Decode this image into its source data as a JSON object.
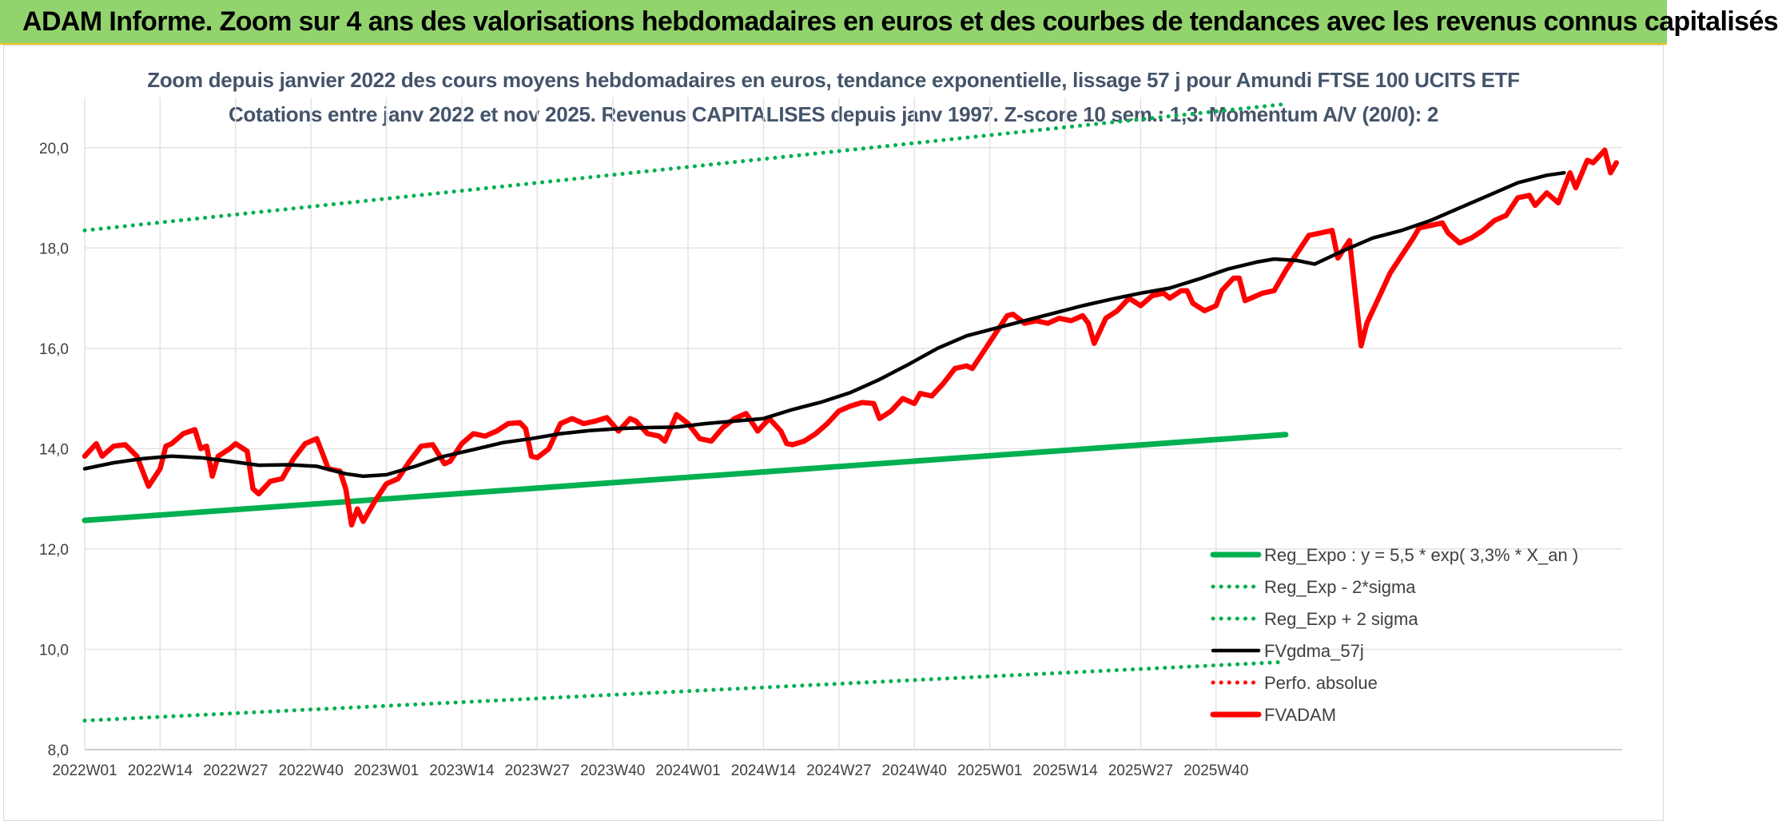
{
  "banner": {
    "title": "ADAM Informe. Zoom sur 4 ans des valorisations hebdomadaires en euros et des courbes de tendances avec les revenus connus capitalisés"
  },
  "chart_data": {
    "type": "line",
    "title": "Zoom depuis janvier 2022 des cours moyens hebdomadaires en euros, tendance exponentielle, lissage 57 j pour Amundi FTSE 100 UCITS ETF",
    "subtitle": "Cotations entre janv 2022 et nov 2025. Revenus CAPITALISES depuis janv 1997. Z-score 10 sem.: 1,3. Momentum A/V (20/0): 2",
    "ylim": [
      8,
      21
    ],
    "yticks": [
      "8,0",
      "10,0",
      "12,0",
      "14,0",
      "16,0",
      "18,0",
      "20,0"
    ],
    "xticks": [
      "2022W01",
      "2022W14",
      "2022W27",
      "2022W40",
      "2023W01",
      "2023W14",
      "2023W27",
      "2023W40",
      "2024W01",
      "2024W14",
      "2024W27",
      "2024W40",
      "2025W01",
      "2025W14",
      "2025W27",
      "2025W40"
    ],
    "grid": true,
    "legend_position": "bottom-right",
    "colors": {
      "green": "#00b050",
      "black": "#000000",
      "red": "#ff0000",
      "axis_text": "#404040",
      "title_text": "#44546a"
    },
    "series": [
      {
        "name": "Reg_Expo : y = 5,5 * exp( 3,3% *  X_an )",
        "style": "solid-thick",
        "color": "#00b050",
        "points": [
          [
            0,
            12.57
          ],
          [
            207,
            14.28
          ]
        ]
      },
      {
        "name": "Reg_Exp - 2*sigma",
        "style": "dotted",
        "color": "#00b050",
        "points": [
          [
            0,
            8.58
          ],
          [
            207,
            9.75
          ]
        ]
      },
      {
        "name": "Reg_Exp + 2 sigma",
        "style": "dotted",
        "color": "#00b050",
        "points": [
          [
            0,
            18.35
          ],
          [
            207,
            20.87
          ]
        ]
      },
      {
        "name": "FVgdma_57j",
        "style": "solid",
        "color": "#000000",
        "points": [
          [
            0,
            13.6
          ],
          [
            5,
            13.72
          ],
          [
            10,
            13.8
          ],
          [
            15,
            13.85
          ],
          [
            20,
            13.82
          ],
          [
            25,
            13.75
          ],
          [
            30,
            13.67
          ],
          [
            35,
            13.68
          ],
          [
            40,
            13.65
          ],
          [
            45,
            13.5
          ],
          [
            48,
            13.45
          ],
          [
            52,
            13.48
          ],
          [
            57,
            13.65
          ],
          [
            62,
            13.85
          ],
          [
            67,
            13.98
          ],
          [
            72,
            14.12
          ],
          [
            77,
            14.2
          ],
          [
            82,
            14.3
          ],
          [
            87,
            14.36
          ],
          [
            92,
            14.4
          ],
          [
            97,
            14.42
          ],
          [
            102,
            14.43
          ],
          [
            107,
            14.5
          ],
          [
            112,
            14.55
          ],
          [
            117,
            14.6
          ],
          [
            122,
            14.78
          ],
          [
            127,
            14.93
          ],
          [
            132,
            15.12
          ],
          [
            137,
            15.38
          ],
          [
            142,
            15.68
          ],
          [
            147,
            16.0
          ],
          [
            152,
            16.25
          ],
          [
            157,
            16.4
          ],
          [
            162,
            16.55
          ],
          [
            167,
            16.7
          ],
          [
            172,
            16.85
          ],
          [
            177,
            16.98
          ],
          [
            182,
            17.1
          ],
          [
            187,
            17.2
          ],
          [
            192,
            17.38
          ],
          [
            197,
            17.58
          ],
          [
            202,
            17.72
          ],
          [
            205,
            17.78
          ],
          [
            209,
            17.75
          ],
          [
            212,
            17.68
          ],
          [
            217,
            17.95
          ],
          [
            222,
            18.2
          ],
          [
            227,
            18.35
          ],
          [
            232,
            18.55
          ],
          [
            237,
            18.8
          ],
          [
            242,
            19.05
          ],
          [
            247,
            19.3
          ],
          [
            252,
            19.45
          ],
          [
            255,
            19.5
          ]
        ]
      },
      {
        "name": "Perfo. absolue",
        "style": "dotted",
        "color": "#ff0000",
        "points": []
      },
      {
        "name": "FVADAM",
        "style": "solid-thick",
        "color": "#ff0000",
        "points": [
          [
            0,
            13.85
          ],
          [
            2,
            14.1
          ],
          [
            3,
            13.85
          ],
          [
            5,
            14.05
          ],
          [
            7,
            14.08
          ],
          [
            9,
            13.85
          ],
          [
            11,
            13.25
          ],
          [
            13,
            13.6
          ],
          [
            14,
            14.05
          ],
          [
            15,
            14.1
          ],
          [
            17,
            14.3
          ],
          [
            19,
            14.38
          ],
          [
            20,
            14.0
          ],
          [
            21,
            14.05
          ],
          [
            22,
            13.45
          ],
          [
            23,
            13.85
          ],
          [
            25,
            14.0
          ],
          [
            26,
            14.1
          ],
          [
            28,
            13.95
          ],
          [
            29,
            13.2
          ],
          [
            30,
            13.1
          ],
          [
            32,
            13.35
          ],
          [
            34,
            13.4
          ],
          [
            36,
            13.8
          ],
          [
            38,
            14.1
          ],
          [
            40,
            14.2
          ],
          [
            42,
            13.6
          ],
          [
            44,
            13.55
          ],
          [
            45,
            13.2
          ],
          [
            46,
            12.48
          ],
          [
            47,
            12.8
          ],
          [
            48,
            12.55
          ],
          [
            50,
            12.95
          ],
          [
            52,
            13.3
          ],
          [
            54,
            13.4
          ],
          [
            56,
            13.75
          ],
          [
            58,
            14.05
          ],
          [
            60,
            14.08
          ],
          [
            62,
            13.7
          ],
          [
            63,
            13.75
          ],
          [
            65,
            14.1
          ],
          [
            67,
            14.3
          ],
          [
            69,
            14.25
          ],
          [
            71,
            14.35
          ],
          [
            73,
            14.5
          ],
          [
            75,
            14.52
          ],
          [
            76,
            14.4
          ],
          [
            77,
            13.85
          ],
          [
            78,
            13.82
          ],
          [
            80,
            14.0
          ],
          [
            82,
            14.5
          ],
          [
            84,
            14.6
          ],
          [
            86,
            14.5
          ],
          [
            88,
            14.55
          ],
          [
            90,
            14.62
          ],
          [
            92,
            14.35
          ],
          [
            94,
            14.6
          ],
          [
            95,
            14.55
          ],
          [
            97,
            14.3
          ],
          [
            99,
            14.25
          ],
          [
            100,
            14.15
          ],
          [
            102,
            14.68
          ],
          [
            104,
            14.5
          ],
          [
            106,
            14.2
          ],
          [
            108,
            14.15
          ],
          [
            110,
            14.42
          ],
          [
            112,
            14.6
          ],
          [
            114,
            14.7
          ],
          [
            116,
            14.35
          ],
          [
            118,
            14.6
          ],
          [
            120,
            14.35
          ],
          [
            121,
            14.1
          ],
          [
            122,
            14.08
          ],
          [
            124,
            14.15
          ],
          [
            126,
            14.3
          ],
          [
            128,
            14.5
          ],
          [
            130,
            14.75
          ],
          [
            132,
            14.85
          ],
          [
            134,
            14.92
          ],
          [
            136,
            14.9
          ],
          [
            137,
            14.6
          ],
          [
            139,
            14.75
          ],
          [
            141,
            15.0
          ],
          [
            143,
            14.9
          ],
          [
            144,
            15.1
          ],
          [
            146,
            15.05
          ],
          [
            148,
            15.3
          ],
          [
            150,
            15.6
          ],
          [
            152,
            15.65
          ],
          [
            153,
            15.6
          ],
          [
            155,
            15.95
          ],
          [
            157,
            16.3
          ],
          [
            159,
            16.65
          ],
          [
            160,
            16.68
          ],
          [
            162,
            16.5
          ],
          [
            164,
            16.55
          ],
          [
            166,
            16.5
          ],
          [
            168,
            16.6
          ],
          [
            170,
            16.55
          ],
          [
            172,
            16.65
          ],
          [
            173,
            16.5
          ],
          [
            174,
            16.1
          ],
          [
            176,
            16.6
          ],
          [
            178,
            16.75
          ],
          [
            180,
            17.0
          ],
          [
            182,
            16.85
          ],
          [
            184,
            17.05
          ],
          [
            186,
            17.1
          ],
          [
            187,
            17.0
          ],
          [
            189,
            17.15
          ],
          [
            190,
            17.15
          ],
          [
            191,
            16.9
          ],
          [
            193,
            16.75
          ],
          [
            195,
            16.85
          ],
          [
            196,
            17.15
          ],
          [
            198,
            17.4
          ],
          [
            199,
            17.4
          ],
          [
            200,
            16.95
          ],
          [
            201,
            17.0
          ],
          [
            203,
            17.1
          ],
          [
            205,
            17.15
          ],
          [
            207,
            17.55
          ],
          [
            209,
            17.9
          ],
          [
            211,
            18.25
          ],
          [
            213,
            18.3
          ],
          [
            215,
            18.35
          ],
          [
            216,
            17.8
          ],
          [
            218,
            18.15
          ],
          [
            219,
            17.1
          ],
          [
            220,
            16.05
          ],
          [
            221,
            16.5
          ],
          [
            223,
            17.0
          ],
          [
            225,
            17.5
          ],
          [
            227,
            17.85
          ],
          [
            229,
            18.2
          ],
          [
            230,
            18.4
          ],
          [
            232,
            18.45
          ],
          [
            234,
            18.5
          ],
          [
            235,
            18.3
          ],
          [
            237,
            18.1
          ],
          [
            239,
            18.2
          ],
          [
            241,
            18.35
          ],
          [
            243,
            18.55
          ],
          [
            245,
            18.65
          ],
          [
            247,
            19.0
          ],
          [
            249,
            19.05
          ],
          [
            250,
            18.85
          ],
          [
            252,
            19.1
          ],
          [
            254,
            18.9
          ],
          [
            256,
            19.5
          ],
          [
            257,
            19.2
          ],
          [
            259,
            19.75
          ],
          [
            260,
            19.7
          ],
          [
            262,
            19.95
          ],
          [
            263,
            19.5
          ],
          [
            264,
            19.7
          ]
        ]
      }
    ]
  }
}
